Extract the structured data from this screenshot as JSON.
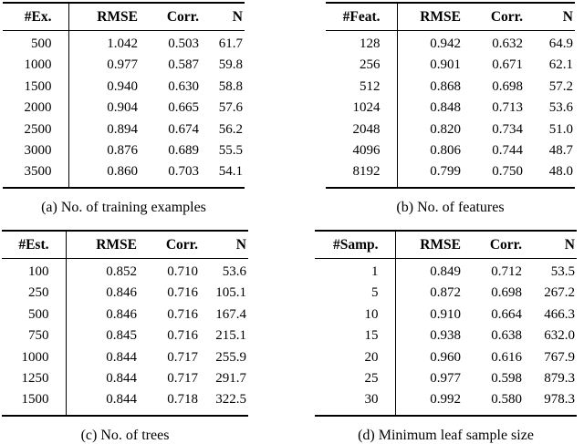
{
  "tables": [
    {
      "id": "a",
      "key_header": "#Ex.",
      "columns": [
        "RMSE",
        "Corr.",
        "N"
      ],
      "rows": [
        [
          "500",
          "1.042",
          "0.503",
          "61.7"
        ],
        [
          "1000",
          "0.977",
          "0.587",
          "59.8"
        ],
        [
          "1500",
          "0.940",
          "0.630",
          "58.8"
        ],
        [
          "2000",
          "0.904",
          "0.665",
          "57.6"
        ],
        [
          "2500",
          "0.894",
          "0.674",
          "56.2"
        ],
        [
          "3000",
          "0.876",
          "0.689",
          "55.5"
        ],
        [
          "3500",
          "0.860",
          "0.703",
          "54.1"
        ]
      ],
      "caption": "(a) No. of training examples"
    },
    {
      "id": "b",
      "key_header": "#Feat.",
      "columns": [
        "RMSE",
        "Corr.",
        "N"
      ],
      "rows": [
        [
          "128",
          "0.942",
          "0.632",
          "64.9"
        ],
        [
          "256",
          "0.901",
          "0.671",
          "62.1"
        ],
        [
          "512",
          "0.868",
          "0.698",
          "57.2"
        ],
        [
          "1024",
          "0.848",
          "0.713",
          "53.6"
        ],
        [
          "2048",
          "0.820",
          "0.734",
          "51.0"
        ],
        [
          "4096",
          "0.806",
          "0.744",
          "48.7"
        ],
        [
          "8192",
          "0.799",
          "0.750",
          "48.0"
        ]
      ],
      "caption": "(b) No. of features"
    },
    {
      "id": "c",
      "key_header": "#Est.",
      "columns": [
        "RMSE",
        "Corr.",
        "N"
      ],
      "rows": [
        [
          "100",
          "0.852",
          "0.710",
          "53.6"
        ],
        [
          "250",
          "0.846",
          "0.716",
          "105.1"
        ],
        [
          "500",
          "0.846",
          "0.716",
          "167.4"
        ],
        [
          "750",
          "0.845",
          "0.716",
          "215.1"
        ],
        [
          "1000",
          "0.844",
          "0.717",
          "255.9"
        ],
        [
          "1250",
          "0.844",
          "0.717",
          "291.7"
        ],
        [
          "1500",
          "0.844",
          "0.718",
          "322.5"
        ]
      ],
      "caption": "(c) No. of trees"
    },
    {
      "id": "d",
      "key_header": "#Samp.",
      "columns": [
        "RMSE",
        "Corr.",
        "N"
      ],
      "rows": [
        [
          "1",
          "0.849",
          "0.712",
          "53.5"
        ],
        [
          "5",
          "0.872",
          "0.698",
          "267.2"
        ],
        [
          "10",
          "0.910",
          "0.664",
          "466.3"
        ],
        [
          "15",
          "0.938",
          "0.638",
          "632.0"
        ],
        [
          "20",
          "0.960",
          "0.616",
          "767.9"
        ],
        [
          "25",
          "0.977",
          "0.598",
          "879.3"
        ],
        [
          "30",
          "0.992",
          "0.580",
          "978.3"
        ]
      ],
      "caption": "(d) Minimum leaf sample size"
    }
  ]
}
